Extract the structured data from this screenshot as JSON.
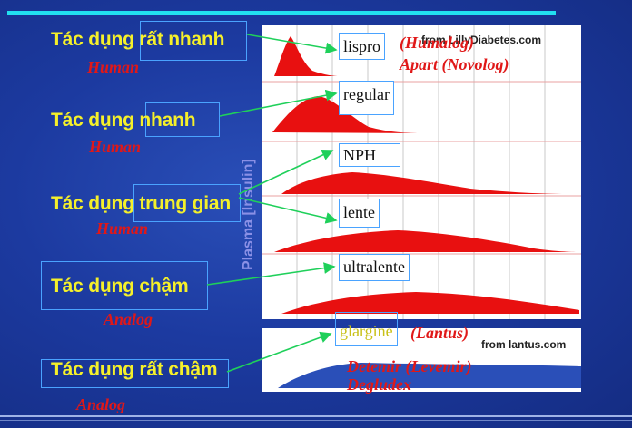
{
  "categories": [
    {
      "label": "Tác dụng rất nhanh",
      "sub": "Human"
    },
    {
      "label": "Tác dụng  nhanh",
      "sub": "Human"
    },
    {
      "label": "Tác dụng trung gian",
      "sub": "Human"
    },
    {
      "label": "Tác dụng chậm",
      "sub": "Analog"
    },
    {
      "label": "Tác dụng rất chậm",
      "sub": "Analog"
    }
  ],
  "axis_label": "Plasma [Insulin]",
  "insulins": {
    "lispro": "lispro",
    "regular": "regular",
    "nph": "NPH",
    "lente": "lente",
    "ultralente": "ultralente",
    "glargine": "glargine"
  },
  "analogs": {
    "humalog": "(Humalog)",
    "apart": "Apart (Novolog)",
    "lantus": "(Lantus)",
    "detemir": "Detemir  (Levemir)",
    "degludex": "Degludex"
  },
  "sources": {
    "top": "from LillyDiabetes.com",
    "bottom": "from lantus.com"
  },
  "colors": {
    "curve_red": "#e81010",
    "curve_blue": "#2a4fb8",
    "label_yellow": "#f5f02a",
    "accent_cyan": "#22e0f0",
    "arrow_green": "#1fd05a"
  }
}
